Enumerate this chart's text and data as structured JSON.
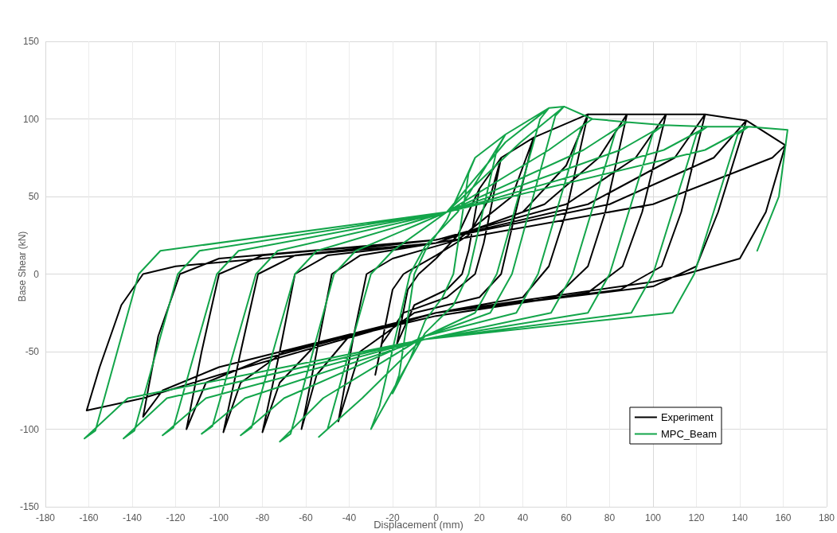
{
  "chart_data": {
    "type": "line",
    "xlabel": "Displacement (mm)",
    "ylabel": "Base Shear (kN)",
    "xlim": [
      -180,
      180
    ],
    "xticks": [
      -180,
      -160,
      -140,
      -120,
      -100,
      -80,
      -60,
      -40,
      -20,
      0,
      20,
      40,
      60,
      80,
      100,
      120,
      140,
      160,
      180
    ],
    "ylim": [
      -150,
      150
    ],
    "yticks": [
      -150,
      -100,
      -50,
      0,
      50,
      100,
      150
    ],
    "grid": true,
    "legend": "bottom right",
    "marker": "none",
    "line_style": "solid",
    "series": [
      {
        "name": "Experiment",
        "color": "#000000",
        "x": [
          20,
          15,
          12,
          5,
          -10,
          -18,
          -13,
          -8,
          0,
          10,
          20,
          30,
          22,
          18,
          5,
          -15,
          -25,
          -28,
          -20,
          -15,
          0,
          15,
          25,
          30,
          45,
          35,
          30,
          20,
          -10,
          -35,
          -45,
          -38,
          -32,
          -20,
          10,
          35,
          45,
          70,
          60,
          52,
          40,
          0,
          -40,
          -55,
          -62,
          -55,
          -48,
          -35,
          0,
          40,
          60,
          70,
          88,
          78,
          70,
          55,
          0,
          -55,
          -72,
          -80,
          -72,
          -65,
          -50,
          0,
          50,
          75,
          88,
          106,
          95,
          86,
          70,
          0,
          -70,
          -90,
          -98,
          -90,
          -82,
          -65,
          0,
          60,
          92,
          106,
          124,
          113,
          104,
          85,
          0,
          -80,
          -106,
          -115,
          -108,
          -100,
          -80,
          0,
          70,
          110,
          124,
          143,
          130,
          120,
          100,
          0,
          -100,
          -126,
          -135,
          -128,
          -118,
          -100,
          0,
          80,
          128,
          143,
          161,
          152,
          140,
          115,
          100,
          0,
          -100,
          -135,
          -161,
          -155,
          -145,
          -135,
          -120,
          0,
          100,
          155,
          161
        ],
        "values": [
          55,
          15,
          0,
          -10,
          -20,
          -45,
          -10,
          0,
          10,
          25,
          55,
          75,
          20,
          0,
          -15,
          -25,
          -45,
          -65,
          -10,
          0,
          12,
          25,
          50,
          75,
          88,
          30,
          0,
          -15,
          -25,
          -50,
          -95,
          -40,
          0,
          10,
          22,
          50,
          88,
          103,
          40,
          5,
          -15,
          -25,
          -40,
          -65,
          -100,
          -50,
          0,
          12,
          20,
          40,
          70,
          103,
          103,
          40,
          5,
          -15,
          -27,
          -45,
          -70,
          -102,
          -50,
          0,
          12,
          20,
          45,
          75,
          103,
          103,
          40,
          5,
          -12,
          -27,
          -50,
          -70,
          -102,
          -50,
          0,
          12,
          22,
          45,
          75,
          103,
          103,
          40,
          5,
          -10,
          -25,
          -55,
          -70,
          -100,
          -50,
          0,
          12,
          22,
          45,
          75,
          103,
          99,
          40,
          5,
          -8,
          -25,
          -60,
          -75,
          -92,
          -40,
          0,
          10,
          22,
          45,
          75,
          99,
          83,
          40,
          10,
          0,
          -5,
          -25,
          -65,
          -80,
          -88,
          -60,
          -20,
          0,
          5,
          20,
          45,
          75,
          83
        ]
      },
      {
        "name": "MPC_Beam",
        "color": "#13a54a",
        "x": [
          18,
          15,
          8,
          3,
          -5,
          -12,
          -20,
          -17,
          -10,
          -5,
          5,
          18,
          32,
          28,
          15,
          8,
          -5,
          -18,
          -30,
          -26,
          -12,
          -5,
          10,
          32,
          52,
          48,
          28,
          18,
          -5,
          -34,
          -54,
          -50,
          -30,
          -20,
          5,
          32,
          52,
          59,
          55,
          35,
          25,
          -5,
          -52,
          -72,
          -67,
          -47,
          -37,
          5,
          39,
          59,
          72,
          67,
          47,
          37,
          -5,
          -70,
          -90,
          -85,
          -65,
          -55,
          5,
          52,
          72,
          88,
          83,
          63,
          53,
          -5,
          -88,
          -108,
          -103,
          -83,
          -73,
          5,
          68,
          88,
          105,
          100,
          80,
          70,
          -5,
          -106,
          -126,
          -121,
          -101,
          -91,
          5,
          85,
          105,
          125,
          120,
          100,
          90,
          -5,
          -124,
          -144,
          -139,
          -119,
          -109,
          5,
          105,
          125,
          144,
          139,
          119,
          109,
          -5,
          -142,
          -162,
          -157,
          -137,
          -127,
          5,
          124,
          144,
          162,
          158,
          148
        ],
        "values": [
          75,
          65,
          0,
          -15,
          -30,
          -55,
          -77,
          -65,
          0,
          15,
          35,
          75,
          90,
          80,
          0,
          -20,
          -38,
          -70,
          -100,
          -85,
          0,
          18,
          40,
          90,
          107,
          100,
          0,
          -25,
          -40,
          -80,
          -105,
          -100,
          0,
          15,
          40,
          85,
          107,
          108,
          102,
          0,
          -25,
          -40,
          -80,
          -108,
          -103,
          0,
          15,
          40,
          85,
          108,
          100,
          95,
          0,
          -25,
          -40,
          -80,
          -104,
          -99,
          0,
          15,
          40,
          80,
          100,
          98,
          93,
          0,
          -25,
          -42,
          -80,
          -103,
          -98,
          0,
          15,
          40,
          80,
          98,
          96,
          91,
          0,
          -25,
          -42,
          -80,
          -104,
          -99,
          0,
          15,
          40,
          80,
          96,
          95,
          90,
          0,
          -25,
          -42,
          -80,
          -106,
          -101,
          0,
          15,
          40,
          80,
          95,
          95,
          90,
          0,
          -25,
          -42,
          -80,
          -106,
          -101,
          0,
          15,
          40,
          80,
          95,
          93,
          50,
          15
        ]
      }
    ]
  }
}
